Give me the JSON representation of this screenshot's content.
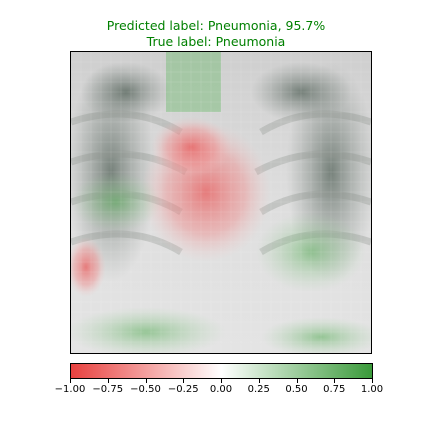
{
  "title": {
    "predicted": "Predicted label: Pneumonia, 95.7%",
    "true": "True label: Pneumonia",
    "color": "#008000"
  },
  "image": {
    "content": "chest-xray-with-attribution-overlay",
    "negative_color": "#e8413f",
    "positive_color": "#3a9a3a"
  },
  "colorbar": {
    "min": -1.0,
    "max": 1.0,
    "ticks": [
      "−1.00",
      "−0.75",
      "−0.50",
      "−0.25",
      "0.00",
      "0.25",
      "0.50",
      "0.75",
      "1.00"
    ],
    "tick_values": [
      -1.0,
      -0.75,
      -0.5,
      -0.25,
      0.0,
      0.25,
      0.5,
      0.75,
      1.0
    ]
  }
}
